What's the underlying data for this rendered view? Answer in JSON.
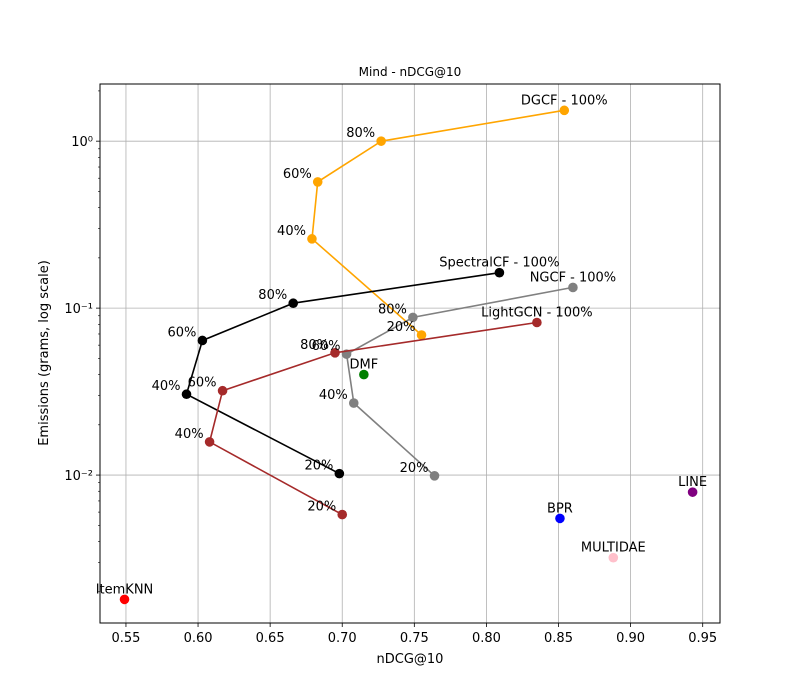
{
  "chart_data": {
    "type": "scatter",
    "title": "Mind - nDCG@10",
    "xlabel": "nDCG@10",
    "ylabel": "Emissions (grams, log scale)",
    "xlim": [
      0.532,
      0.962
    ],
    "ylim": [
      0.0013,
      2.2
    ],
    "yscale": "log",
    "grid": true,
    "x_ticks": [
      0.55,
      0.6,
      0.65,
      0.7,
      0.75,
      0.8,
      0.85,
      0.9,
      0.95
    ],
    "x_tick_labels": [
      "0.55",
      "0.60",
      "0.65",
      "0.70",
      "0.75",
      "0.80",
      "0.85",
      "0.90",
      "0.95"
    ],
    "y_ticks": [
      0.01,
      0.1,
      1
    ],
    "y_tick_labels": [
      "10⁻²",
      "10⁻¹",
      "10⁰"
    ],
    "series": [
      {
        "color": "#ffa500",
        "connected": true,
        "points": [
          {
            "x": 0.755,
            "y": 0.069,
            "label": "20%"
          },
          {
            "x": 0.679,
            "y": 0.26,
            "label": "40%"
          },
          {
            "x": 0.683,
            "y": 0.57,
            "label": "60%"
          },
          {
            "x": 0.727,
            "y": 1.0,
            "label": "80%"
          },
          {
            "x": 0.854,
            "y": 1.53,
            "label": "DGCF - 100%"
          }
        ]
      },
      {
        "color": "#000000",
        "connected": true,
        "points": [
          {
            "x": 0.698,
            "y": 0.0102,
            "label": "20%"
          },
          {
            "x": 0.592,
            "y": 0.0305,
            "label": "40%"
          },
          {
            "x": 0.603,
            "y": 0.064,
            "label": "60%"
          },
          {
            "x": 0.666,
            "y": 0.107,
            "label": "80%"
          },
          {
            "x": 0.809,
            "y": 0.163,
            "label": "SpectralCF - 100%"
          }
        ]
      },
      {
        "color": "#808080",
        "connected": true,
        "points": [
          {
            "x": 0.764,
            "y": 0.0099,
            "label": "20%"
          },
          {
            "x": 0.708,
            "y": 0.027,
            "label": "40%"
          },
          {
            "x": 0.703,
            "y": 0.053,
            "label": "60%"
          },
          {
            "x": 0.749,
            "y": 0.088,
            "label": "80%"
          },
          {
            "x": 0.86,
            "y": 0.133,
            "label": "NGCF - 100%"
          }
        ]
      },
      {
        "color": "#a52a2a",
        "connected": true,
        "points": [
          {
            "x": 0.7,
            "y": 0.0058,
            "label": "20%"
          },
          {
            "x": 0.608,
            "y": 0.0158,
            "label": "40%"
          },
          {
            "x": 0.617,
            "y": 0.032,
            "label": "60%"
          },
          {
            "x": 0.695,
            "y": 0.054,
            "label": "80%"
          },
          {
            "x": 0.835,
            "y": 0.082,
            "label": "LightGCN - 100%"
          }
        ]
      },
      {
        "color": "#008000",
        "connected": false,
        "points": [
          {
            "x": 0.715,
            "y": 0.04,
            "label": "DMF"
          }
        ]
      },
      {
        "color": "#ff0000",
        "connected": false,
        "points": [
          {
            "x": 0.549,
            "y": 0.0018,
            "label": "ItemKNN"
          }
        ]
      },
      {
        "color": "#0000ff",
        "connected": false,
        "points": [
          {
            "x": 0.851,
            "y": 0.0055,
            "label": "BPR"
          }
        ]
      },
      {
        "color": "#ffc0cb",
        "connected": false,
        "points": [
          {
            "x": 0.888,
            "y": 0.0032,
            "label": "MULTIDAE"
          }
        ]
      },
      {
        "color": "#800080",
        "connected": false,
        "points": [
          {
            "x": 0.943,
            "y": 0.0079,
            "label": "LINE"
          }
        ]
      }
    ]
  }
}
